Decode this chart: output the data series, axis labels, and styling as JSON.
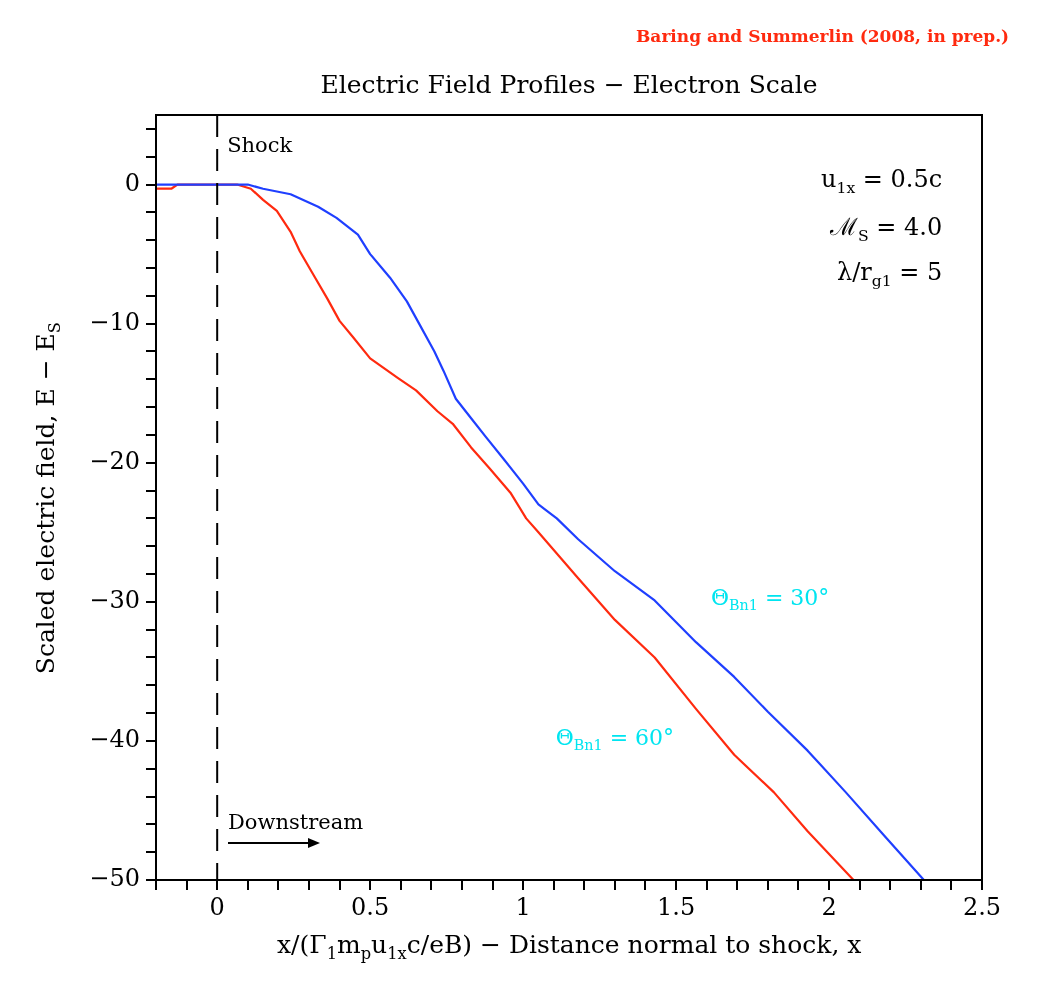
{
  "chart_data": {
    "type": "line",
    "title": "Electric Field Profiles − Electron Scale",
    "xlabel": "x/(Γ$_{1}$m$_{p}$u$_{1x}$c/eB) − Distance normal to shock, x",
    "ylabel": "Scaled electric field, E − E$_{S}$",
    "xlim": [
      -0.2,
      2.5
    ],
    "ylim": [
      -50,
      5
    ],
    "xticks": [
      {
        "value": -0.2,
        "label": null
      },
      {
        "value": -0.1,
        "label": null
      },
      0,
      {
        "value": 0.1,
        "label": null
      },
      {
        "value": 0.2,
        "label": null
      },
      {
        "value": 0.3,
        "label": null
      },
      {
        "value": 0.4,
        "label": null
      },
      0.5,
      {
        "value": 0.6,
        "label": null
      },
      {
        "value": 0.7,
        "label": null
      },
      {
        "value": 0.8,
        "label": null
      },
      {
        "value": 0.9,
        "label": null
      },
      1,
      {
        "value": 1.1,
        "label": null
      },
      {
        "value": 1.2,
        "label": null
      },
      {
        "value": 1.3,
        "label": null
      },
      {
        "value": 1.4,
        "label": null
      },
      1.5,
      {
        "value": 1.6,
        "label": null
      },
      {
        "value": 1.7,
        "label": null
      },
      {
        "value": 1.8,
        "label": null
      },
      {
        "value": 1.9,
        "label": null
      },
      2,
      {
        "value": 2.1,
        "label": null
      },
      {
        "value": 2.2,
        "label": null
      },
      {
        "value": 2.3,
        "label": null
      },
      {
        "value": 2.4,
        "label": null
      },
      2.5
    ],
    "yticks": [
      -50,
      {
        "value": -48,
        "label": null
      },
      {
        "value": -46,
        "label": null
      },
      {
        "value": -44,
        "label": null
      },
      {
        "value": -42,
        "label": null
      },
      -40,
      {
        "value": -38,
        "label": null
      },
      {
        "value": -36,
        "label": null
      },
      {
        "value": -34,
        "label": null
      },
      {
        "value": -32,
        "label": null
      },
      -30,
      {
        "value": -28,
        "label": null
      },
      {
        "value": -26,
        "label": null
      },
      {
        "value": -24,
        "label": null
      },
      {
        "value": -22,
        "label": null
      },
      -20,
      {
        "value": -18,
        "label": null
      },
      {
        "value": -16,
        "label": null
      },
      {
        "value": -14,
        "label": null
      },
      {
        "value": -12,
        "label": null
      },
      -10,
      {
        "value": -8,
        "label": null
      },
      {
        "value": -6,
        "label": null
      },
      {
        "value": -4,
        "label": null
      },
      {
        "value": -2,
        "label": null
      },
      0,
      {
        "value": 2,
        "label": null
      },
      {
        "value": 4,
        "label": null
      }
    ],
    "marker": "none",
    "line_style": "solid",
    "legend": false,
    "series": [
      {
        "name": "Θ$_{Bn1}$ = 30°",
        "color": "#1f3fff",
        "x": [
          -0.2,
          0.1,
          0.15,
          0.24,
          0.33,
          0.39,
          0.46,
          0.5,
          0.565,
          0.62,
          0.66,
          0.71,
          0.74,
          0.78,
          0.83,
          0.88,
          0.935,
          1.0,
          1.05,
          1.11,
          1.18,
          1.3,
          1.43,
          1.565,
          1.69,
          1.8,
          1.93,
          2.055,
          2.18,
          2.31
        ],
        "values": [
          0,
          0,
          -0.3,
          -0.7,
          -1.6,
          -2.4,
          -3.6,
          -5.0,
          -6.7,
          -8.4,
          -10.0,
          -12.0,
          -13.4,
          -15.4,
          -16.8,
          -18.2,
          -19.7,
          -21.5,
          -23.0,
          -24.0,
          -25.5,
          -27.8,
          -29.9,
          -32.9,
          -35.4,
          -37.9,
          -40.7,
          -43.7,
          -46.8,
          -50
        ]
      },
      {
        "name": "Θ$_{Bn1}$ = 60°",
        "color": "#ff2a0f",
        "x": [
          -0.2,
          -0.15,
          -0.13,
          0.065,
          0.11,
          0.15,
          0.195,
          0.24,
          0.27,
          0.315,
          0.36,
          0.4,
          0.445,
          0.5,
          0.59,
          0.65,
          0.72,
          0.77,
          0.83,
          0.89,
          0.96,
          1.01,
          1.05,
          1.18,
          1.3,
          1.43,
          1.565,
          1.69,
          1.82,
          1.93,
          2.08
        ],
        "values": [
          -0.3,
          -0.3,
          0,
          0,
          -0.3,
          -1.1,
          -1.9,
          -3.4,
          -4.8,
          -6.5,
          -8.2,
          -9.8,
          -11.0,
          -12.5,
          -13.9,
          -14.8,
          -16.3,
          -17.2,
          -18.9,
          -20.4,
          -22.2,
          -24.0,
          -25.0,
          -28.3,
          -31.3,
          -34.0,
          -37.7,
          -41.0,
          -43.7,
          -46.5,
          -50
        ]
      }
    ],
    "ref_lines": [
      {
        "axis": "x",
        "value": 0,
        "label": "Shock",
        "color": "#000000",
        "line_style": "dashed"
      }
    ],
    "annotations": [
      "Baring and Summerlin (2008, in prep.)",
      "u$_{1x}$ = 0.5c",
      "ℳ$_{S}$ = 4.0",
      "λ/r$_{g1}$ = 5",
      "Downstream"
    ]
  }
}
